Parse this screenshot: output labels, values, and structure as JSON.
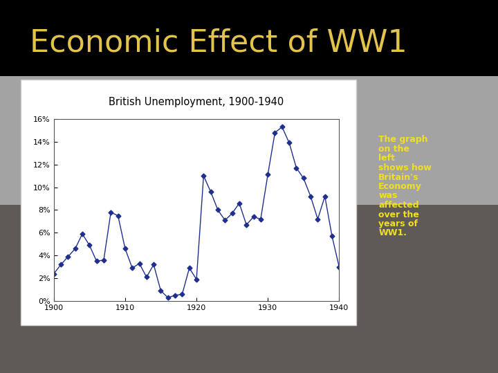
{
  "slide_title": "Economic Effect of WW1",
  "caption": "The graph on the left shows how Britain's Economy was affected over the years of WW1.",
  "chart_data": {
    "type": "line",
    "title": "British Unemployment, 1900-1940",
    "x": [
      1900,
      1901,
      1902,
      1903,
      1904,
      1905,
      1906,
      1907,
      1908,
      1909,
      1910,
      1911,
      1912,
      1913,
      1914,
      1915,
      1916,
      1917,
      1918,
      1919,
      1920,
      1921,
      1922,
      1923,
      1924,
      1925,
      1926,
      1927,
      1928,
      1929,
      1930,
      1931,
      1932,
      1933,
      1934,
      1935,
      1936,
      1937,
      1938,
      1939,
      1940
    ],
    "values": [
      2.4,
      3.2,
      3.9,
      4.6,
      5.9,
      4.9,
      3.5,
      3.6,
      7.8,
      7.5,
      4.6,
      2.9,
      3.3,
      2.1,
      3.2,
      0.9,
      0.3,
      0.5,
      0.6,
      2.9,
      1.9,
      11.0,
      9.6,
      8.0,
      7.1,
      7.7,
      8.6,
      6.7,
      7.4,
      7.2,
      11.1,
      14.8,
      15.3,
      13.9,
      11.7,
      10.8,
      9.2,
      7.2,
      9.2,
      5.7,
      3.0
    ],
    "color": "#1f2f8f",
    "marker": "diamond",
    "xlim": [
      1900,
      1940
    ],
    "xticks": [
      1900,
      1910,
      1920,
      1930,
      1940
    ],
    "ylim": [
      0,
      16
    ],
    "yticks": [
      {
        "value": 0,
        "label": "0%"
      },
      {
        "value": 2,
        "label": "2%"
      },
      {
        "value": 4,
        "label": "4%"
      },
      {
        "value": 6,
        "label": "6%"
      },
      {
        "value": 8,
        "label": "8%"
      },
      {
        "value": 10,
        "label": "10%"
      },
      {
        "value": 12,
        "label": "12%"
      },
      {
        "value": 14,
        "label": "14%"
      },
      {
        "value": 16,
        "label": "16%"
      }
    ],
    "grid": false
  }
}
